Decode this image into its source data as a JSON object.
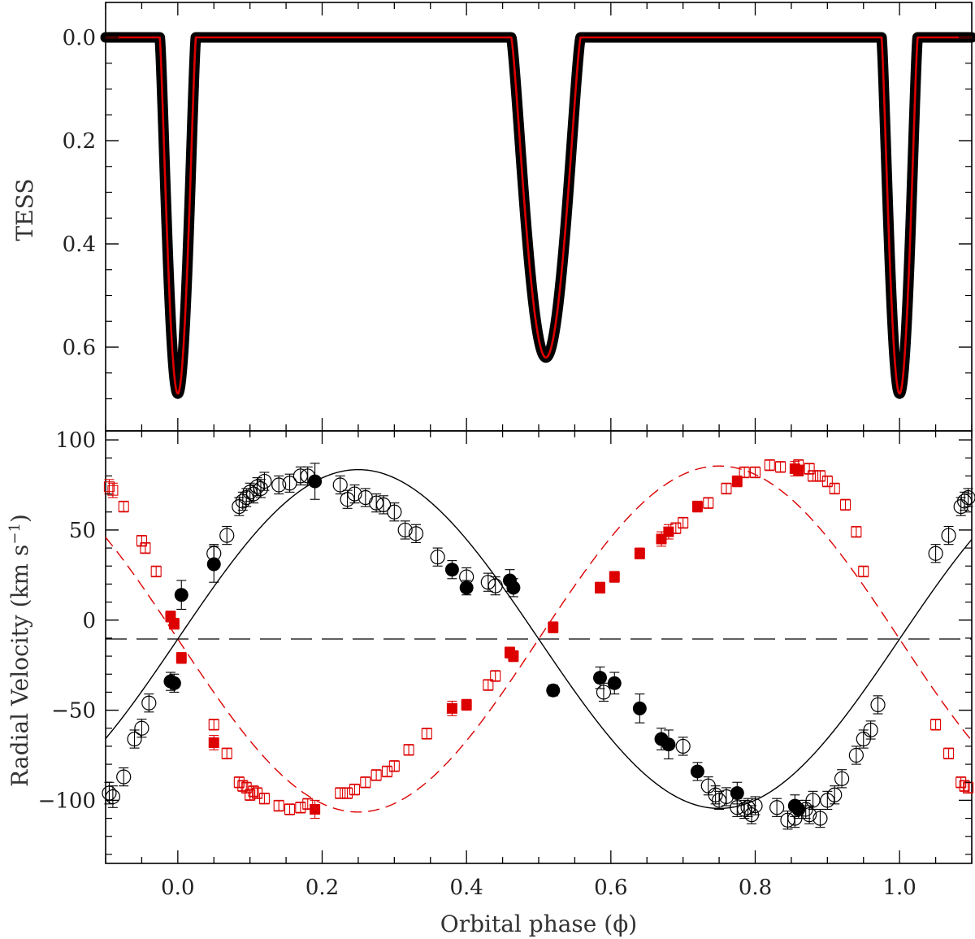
{
  "chart_data": [
    {
      "type": "line",
      "title": "",
      "xlabel": "",
      "ylabel": "TESS",
      "xlim": [
        -0.1,
        1.1
      ],
      "ylim": [
        0.0,
        0.75
      ],
      "y_inverted": true,
      "xticks": [
        0.0,
        0.2,
        0.4,
        0.6,
        0.8,
        1.0
      ],
      "yticks": [
        0.0,
        0.2,
        0.4,
        0.6
      ],
      "ytick_labels": [
        "0.0",
        "0.2",
        "0.4",
        "0.6"
      ],
      "grid": false,
      "eclipses": [
        {
          "phase": 0.0,
          "depth": 0.69,
          "half_width": 0.025
        },
        {
          "phase": 0.51,
          "depth": 0.62,
          "half_width": 0.048
        },
        {
          "phase": 1.0,
          "depth": 0.69,
          "half_width": 0.025
        }
      ],
      "series": [
        {
          "role": "observations",
          "color": "#000000"
        },
        {
          "role": "model",
          "color": "#dd0000"
        }
      ]
    },
    {
      "type": "scatter",
      "title": "",
      "xlabel": "Orbital phase (ϕ)",
      "ylabel_parts": [
        "Radial Velocity (km s",
        "−1",
        ")"
      ],
      "xlim": [
        -0.1,
        1.1
      ],
      "ylim": [
        -135,
        105
      ],
      "xticks": [
        0.0,
        0.2,
        0.4,
        0.6,
        0.8,
        1.0
      ],
      "xtick_labels": [
        "0.0",
        "0.2",
        "0.4",
        "0.6",
        "0.8",
        "1.0"
      ],
      "yticks": [
        100,
        50,
        0,
        -50,
        -100
      ],
      "ytick_labels": [
        "100",
        "50",
        "0",
        "−50",
        "−100"
      ],
      "systemic_velocity": -10.5,
      "grid": false,
      "orbits": [
        {
          "name": "",
          "K": 94,
          "color": "#000000",
          "style": "solid",
          "sign": 1
        },
        {
          "name": "",
          "K": 96,
          "color": "#dd0000",
          "style": "dashed",
          "sign": -1
        }
      ],
      "series": [
        {
          "marker": "filled-circle",
          "color": "#000000",
          "x": [
            -0.01,
            -0.005,
            0.005,
            0.05,
            0.19,
            0.38,
            0.4,
            0.46,
            0.465,
            0.52,
            0.585,
            0.605,
            0.64,
            0.67,
            0.68,
            0.72,
            0.775,
            0.855,
            0.86
          ],
          "y": [
            -34,
            -35,
            14,
            31,
            77,
            28,
            18,
            22,
            18,
            -39,
            -32,
            -35,
            -49,
            -66,
            -69,
            -84,
            -96,
            -103,
            -105
          ],
          "err": [
            5,
            5,
            8,
            10,
            10,
            5,
            4,
            6,
            5,
            3,
            6,
            6,
            8,
            6,
            8,
            5,
            6,
            6,
            5
          ]
        },
        {
          "marker": "open-circle",
          "color": "#000000",
          "x": [
            -0.095,
            -0.09,
            -0.075,
            -0.06,
            -0.05,
            -0.04,
            0.05,
            0.068,
            0.085,
            0.09,
            0.095,
            0.1,
            0.105,
            0.11,
            0.115,
            0.12,
            0.14,
            0.155,
            0.17,
            0.18,
            0.225,
            0.235,
            0.245,
            0.26,
            0.275,
            0.285,
            0.3,
            0.315,
            0.33,
            0.36,
            0.4,
            0.43,
            0.44,
            0.59,
            0.7,
            0.735,
            0.745,
            0.75,
            0.76,
            0.775,
            0.785,
            0.79,
            0.795,
            0.8,
            0.83,
            0.845,
            0.855,
            0.87,
            0.875,
            0.88,
            0.89,
            0.9,
            0.91,
            0.92,
            0.94,
            0.95,
            0.96,
            0.97,
            1.05,
            1.068,
            1.085,
            1.09,
            1.095
          ],
          "y": [
            -96,
            -98,
            -87,
            -66,
            -60,
            -46,
            37,
            47,
            63,
            66,
            68,
            71,
            70,
            74,
            73,
            77,
            75,
            76,
            80,
            80,
            75,
            67,
            70,
            68,
            65,
            64,
            60,
            50,
            48,
            35,
            24,
            21,
            19,
            -40,
            -70,
            -92,
            -97,
            -100,
            -98,
            -104,
            -105,
            -104,
            -108,
            -103,
            -104,
            -111,
            -110,
            -105,
            -108,
            -100,
            -110,
            -100,
            -97,
            -88,
            -75,
            -66,
            -61,
            -47,
            37,
            47,
            63,
            66,
            68
          ],
          "err": [
            6,
            6,
            5,
            5,
            5,
            5,
            5,
            5,
            5,
            5,
            5,
            5,
            5,
            5,
            5,
            5,
            5,
            5,
            5,
            5,
            5,
            5,
            5,
            5,
            5,
            5,
            5,
            5,
            5,
            5,
            5,
            5,
            5,
            5,
            5,
            5,
            5,
            5,
            5,
            5,
            5,
            5,
            5,
            5,
            5,
            5,
            5,
            5,
            5,
            5,
            5,
            5,
            5,
            5,
            5,
            5,
            5,
            5,
            5,
            5,
            5,
            5,
            5
          ]
        },
        {
          "marker": "filled-square",
          "color": "#dd0000",
          "x": [
            -0.01,
            -0.005,
            0.005,
            0.05,
            0.19,
            0.38,
            0.4,
            0.46,
            0.465,
            0.52,
            0.585,
            0.605,
            0.64,
            0.67,
            0.68,
            0.72,
            0.775,
            0.855,
            0.86
          ],
          "y": [
            2,
            -2,
            -21,
            -68,
            -105,
            -49,
            -47,
            -18,
            -20,
            -4,
            18,
            24,
            37,
            45,
            49,
            63,
            77,
            84,
            83
          ],
          "err": [
            3,
            3,
            3,
            4,
            5,
            4,
            3,
            3,
            3,
            3,
            3,
            3,
            3,
            4,
            4,
            3,
            3,
            4,
            3
          ]
        },
        {
          "marker": "open-square",
          "color": "#dd0000",
          "x": [
            -0.095,
            -0.09,
            -0.075,
            -0.05,
            -0.045,
            -0.03,
            0.05,
            0.068,
            0.085,
            0.09,
            0.095,
            0.1,
            0.105,
            0.11,
            0.12,
            0.14,
            0.155,
            0.17,
            0.18,
            0.225,
            0.235,
            0.245,
            0.26,
            0.275,
            0.29,
            0.3,
            0.32,
            0.345,
            0.43,
            0.44,
            0.69,
            0.7,
            0.735,
            0.76,
            0.785,
            0.8,
            0.82,
            0.835,
            0.86,
            0.875,
            0.88,
            0.89,
            0.9,
            0.91,
            0.925,
            0.94,
            0.95,
            1.05,
            1.068,
            1.085,
            1.09,
            1.095
          ],
          "y": [
            74,
            72,
            63,
            44,
            40,
            27,
            -58,
            -74,
            -90,
            -92,
            -93,
            -97,
            -95,
            -96,
            -99,
            -103,
            -105,
            -104,
            -102,
            -96,
            -96,
            -94,
            -90,
            -86,
            -84,
            -81,
            -72,
            -63,
            -36,
            -31,
            51,
            54,
            65,
            73,
            82,
            82,
            86,
            85,
            86,
            84,
            80,
            80,
            77,
            73,
            64,
            49,
            27,
            -58,
            -74,
            -90,
            -92,
            -93
          ],
          "err": [
            4,
            4,
            3,
            3,
            3,
            3,
            3,
            3,
            3,
            3,
            3,
            3,
            3,
            3,
            3,
            3,
            3,
            3,
            3,
            3,
            3,
            3,
            3,
            3,
            3,
            3,
            3,
            3,
            3,
            3,
            3,
            3,
            3,
            3,
            3,
            3,
            3,
            3,
            3,
            3,
            3,
            3,
            3,
            3,
            3,
            3,
            3,
            3,
            3,
            3,
            3,
            3
          ]
        }
      ]
    }
  ]
}
